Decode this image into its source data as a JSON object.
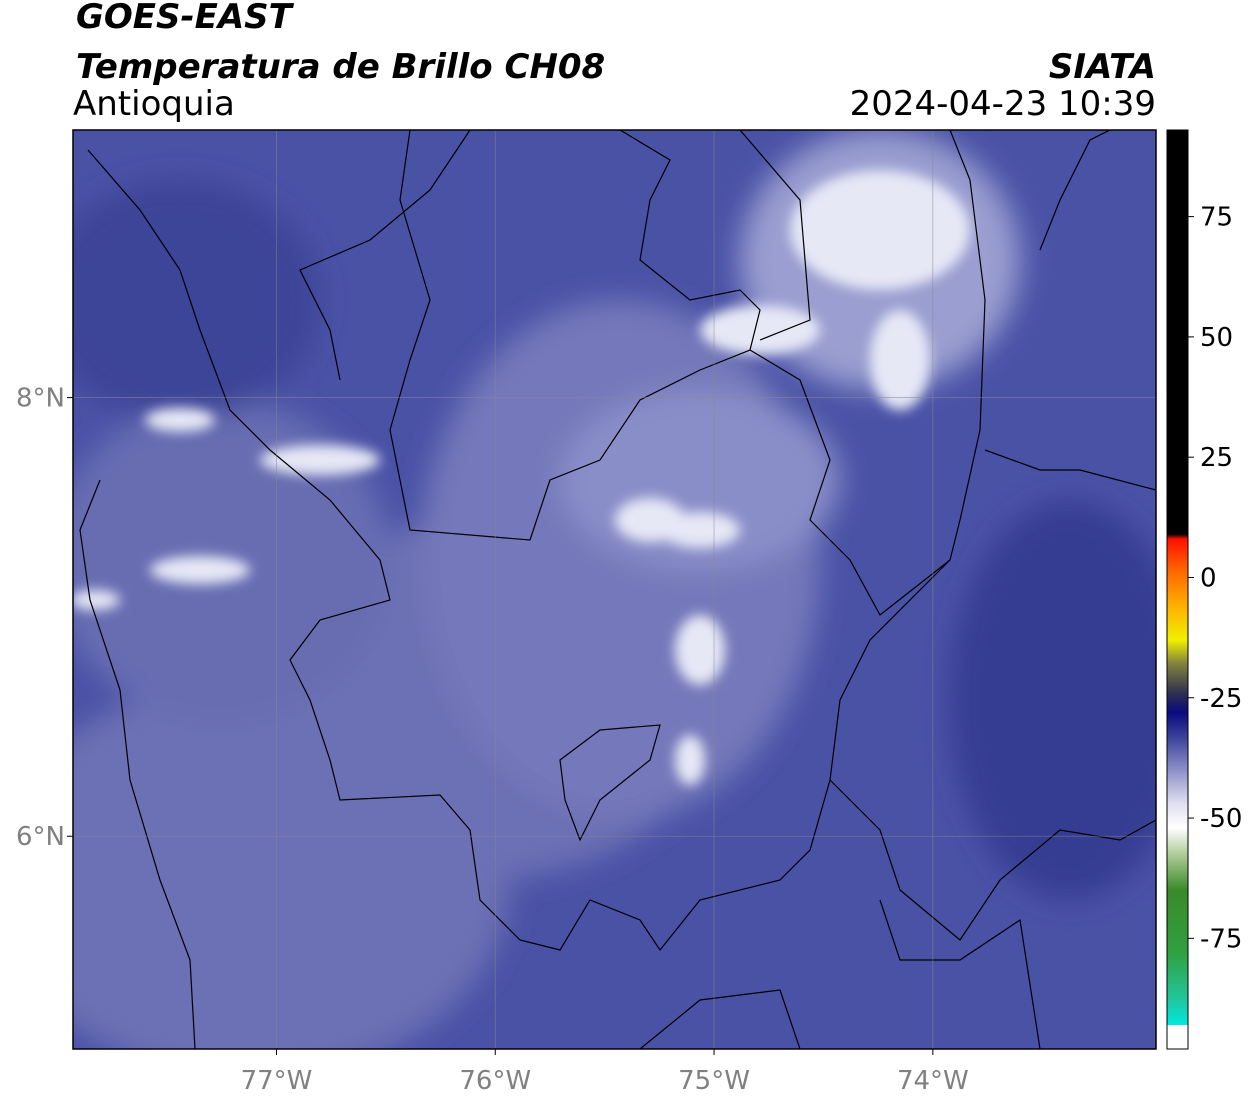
{
  "header": {
    "title": "GOES-EAST",
    "subtitle": "Temperatura de Brillo CH08",
    "region": "Antioquia",
    "source": "SIATA",
    "timestamp": "2024-04-23 10:39"
  },
  "map": {
    "type": "map",
    "xlim": [
      -77.93,
      -72.98
    ],
    "ylim": [
      5.03,
      9.22
    ],
    "xticks": [
      {
        "value": -77,
        "label": "77°W"
      },
      {
        "value": -76,
        "label": "76°W"
      },
      {
        "value": -75,
        "label": "75°W"
      },
      {
        "value": -74,
        "label": "74°W"
      }
    ],
    "yticks": [
      {
        "value": 6,
        "label": "6°N"
      },
      {
        "value": 8,
        "label": "8°N"
      }
    ],
    "grid": true
  },
  "colorbar": {
    "clim": [
      -98,
      93
    ],
    "ticks": [
      -75,
      -50,
      -25,
      0,
      25,
      50,
      75
    ],
    "colorscale": [
      [
        -98,
        "#ffffff"
      ],
      [
        -93,
        "#ffffff"
      ],
      [
        -93,
        "#00e8e0"
      ],
      [
        -88,
        "#20c8a0"
      ],
      [
        -78,
        "#30a040"
      ],
      [
        -65,
        "#3a8a2a"
      ],
      [
        -58,
        "#a8c890"
      ],
      [
        -52,
        "#ffffff"
      ],
      [
        -47,
        "#e0e0f0"
      ],
      [
        -40,
        "#8c90c8"
      ],
      [
        -33,
        "#3a3f98"
      ],
      [
        -28,
        "#0a0a80"
      ],
      [
        -24,
        "#303050"
      ],
      [
        -18,
        "#808040"
      ],
      [
        -13,
        "#f0f000"
      ],
      [
        -6,
        "#ffb000"
      ],
      [
        2,
        "#ff6000"
      ],
      [
        8,
        "#ff1000"
      ],
      [
        9,
        "#000000"
      ],
      [
        93,
        "#000000"
      ]
    ]
  }
}
